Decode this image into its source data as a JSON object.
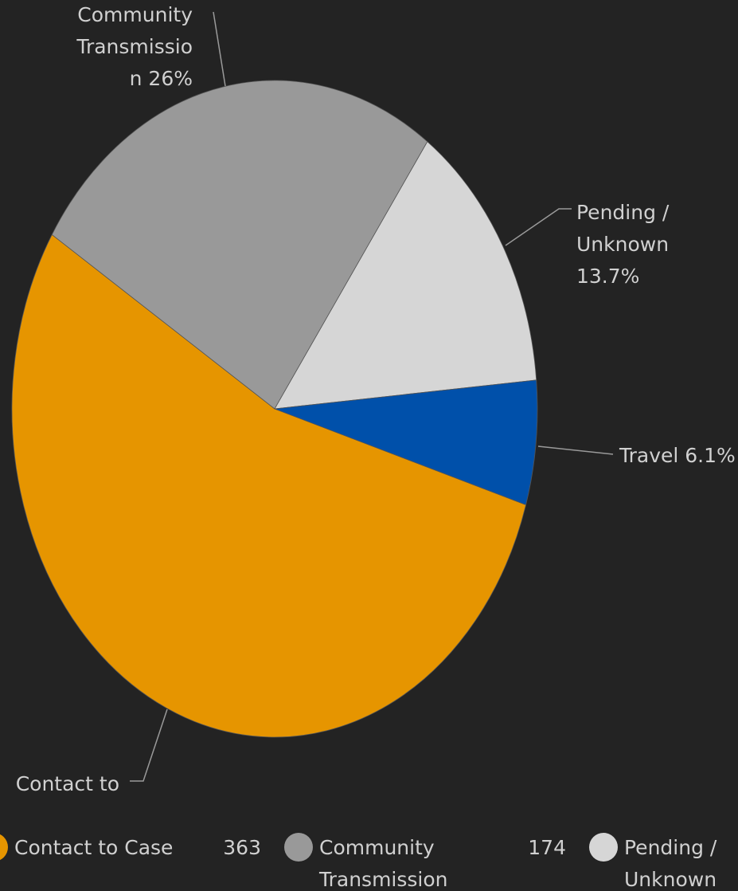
{
  "chart_data": {
    "type": "pie",
    "series": [
      {
        "name": "Contact to Case",
        "color": "#e69500",
        "value": 363
      },
      {
        "name": "Community Transmission",
        "color": "#999999",
        "value": 174
      },
      {
        "name": "Pending / Unknown",
        "color": "#d6d6d6",
        "value": 92
      },
      {
        "name": "Travel",
        "color": "#0050aa",
        "value": 41
      }
    ],
    "slice_labels": [
      [
        "Contact to"
      ],
      [
        "Community",
        "Transmissio",
        "n 26%"
      ],
      [
        "Pending /",
        "Unknown",
        "13.7%"
      ],
      [
        "Travel 6.1%"
      ]
    ],
    "legend": "bottom"
  }
}
